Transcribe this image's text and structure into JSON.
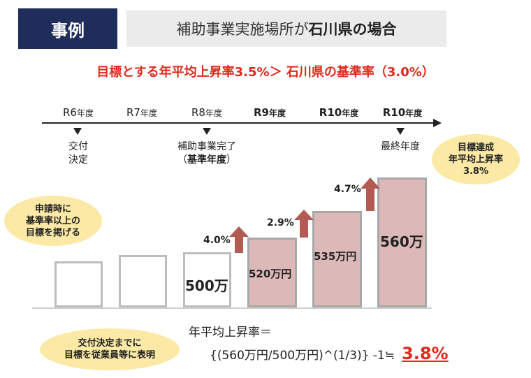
{
  "header": {
    "tag": "事例",
    "subtitle_prefix": "補助事業実施場所が",
    "subtitle_bold": "石川県の場合"
  },
  "headline": "目標とする年平均上昇率3.5%＞ 石川県の基準率（3.0%）",
  "timeline": {
    "years": [
      {
        "main": "R6",
        "suffix": "年度"
      },
      {
        "main": "R7",
        "suffix": "年度"
      },
      {
        "main": "R8",
        "suffix": "年度"
      },
      {
        "main": "R9",
        "suffix": "年度"
      },
      {
        "main": "R10",
        "suffix": "年度"
      },
      {
        "main": "R10",
        "suffix": "年度"
      }
    ],
    "notes": {
      "r6_line1": "交付",
      "r6_line2": "決定",
      "r8_line1": "補助事業完了",
      "r8_line2_prefix": "（",
      "r8_line2_bold": "基準年度",
      "r8_line2_suffix": "）",
      "r10_line1": "最終年度"
    }
  },
  "chart_data": {
    "type": "bar",
    "categories": [
      "R6年度",
      "R7年度",
      "R8年度",
      "R9年度",
      "R10年度",
      "R10年度"
    ],
    "bar_labels": [
      "",
      "",
      "500万",
      "520万円",
      "535万円",
      "560万"
    ],
    "growth_rates": [
      "",
      "",
      "4.0%",
      "2.9%",
      "4.7%",
      ""
    ],
    "colors": {
      "empty_bar": "#ffffff",
      "filled_bar": "#dcb8b8",
      "arrow": "#b35a52"
    }
  },
  "callouts": {
    "left_top": [
      "申請時に",
      "基準率以上の",
      "目標を掲げる"
    ],
    "left_bottom": [
      "交付決定までに",
      "目標を従業員等に表明"
    ],
    "right_top": [
      "目標達成",
      "年平均上昇率",
      "3.8%"
    ]
  },
  "formula": {
    "line1": "年平均上昇率＝",
    "line2": "{(560万円/500万円)^(1/3)} -1≒",
    "result": "3.8%"
  },
  "colors": {
    "accent_red": "#e0291b",
    "navy": "#1f2d5a"
  }
}
